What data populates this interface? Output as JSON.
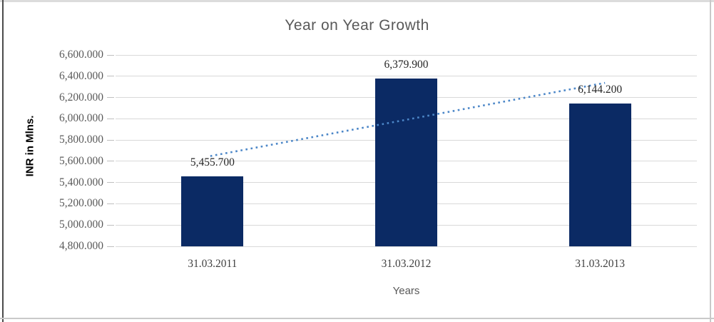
{
  "chart_data": {
    "type": "bar",
    "title": "Year on Year Growth",
    "xlabel": "Years",
    "ylabel": "INR in Mlns.",
    "categories": [
      "31.03.2011",
      "31.03.2012",
      "31.03.2013"
    ],
    "values": [
      5455.7,
      6379.9,
      6144.2
    ],
    "data_labels": [
      "5,455.700",
      "6,379.900",
      "6,144.200"
    ],
    "series_name": "INR in Mlns.",
    "y_ticks": [
      "6,600.000",
      "6,400.000",
      "6,200.000",
      "6,000.000",
      "5,800.000",
      "5,600.000",
      "5,400.000",
      "5,200.000",
      "5,000.000",
      "4,800.000"
    ],
    "ylim": [
      4800,
      6600
    ],
    "y_step": 200,
    "grid": true,
    "legend": "none",
    "trendline": {
      "type": "linear",
      "style": "dotted",
      "color": "#4c87c8",
      "start_value": 5649.0,
      "end_value": 6337.5
    },
    "colors": {
      "bar": "#0b2a64",
      "gridline": "#d9d9d9",
      "title_text": "#595959",
      "axis_tick_text": "#595959",
      "data_label_text": "#262626",
      "category_text": "#404040",
      "trendline": "#4c87c8"
    }
  }
}
